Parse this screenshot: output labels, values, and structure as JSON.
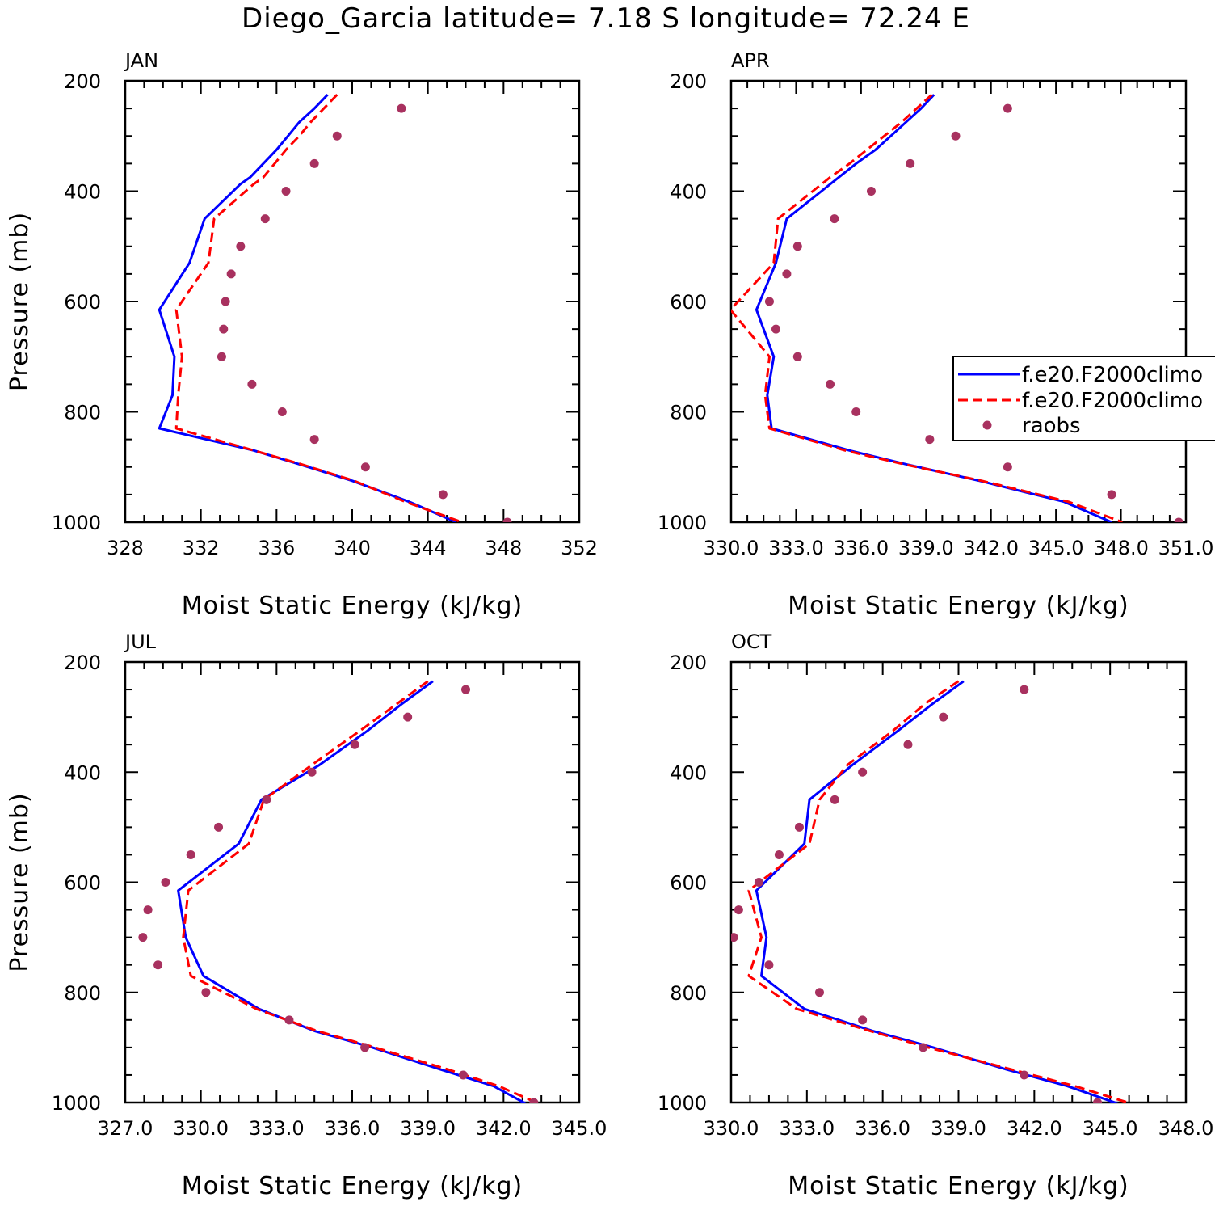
{
  "title": "Diego_Garcia  latitude= 7.18 S longitude= 72.24 E",
  "legend": [
    {
      "label": "f.e20.F2000climo",
      "color": "#0000ff",
      "style": "solid"
    },
    {
      "label": "f.e20.F2000climo",
      "color": "#ff0000",
      "style": "dashed"
    },
    {
      "label": "raobs",
      "color": "#a8315f",
      "style": "marker"
    }
  ],
  "chart_data": [
    {
      "type": "line",
      "panel": "JAN",
      "xlabel": "Moist Static Energy (kJ/kg)",
      "ylabel": "Pressure (mb)",
      "xlim": [
        328,
        352
      ],
      "ylim": [
        200,
        1000
      ],
      "xticks": [
        328,
        332,
        336,
        340,
        344,
        348,
        352
      ],
      "xtick_labels": [
        "328",
        "332",
        "336",
        "340",
        "344",
        "348",
        "352"
      ],
      "yticks": [
        200,
        400,
        600,
        800,
        1000
      ],
      "ytick_labels": [
        "200",
        "400",
        "600",
        "800",
        "1000"
      ],
      "series": [
        {
          "name": "f.e20.F2000climo",
          "style": "solid",
          "color": "#0000ff",
          "pressure": [
            225,
            250,
            275,
            300,
            325,
            350,
            375,
            387,
            450,
            530,
            615,
            700,
            770,
            830,
            870,
            895,
            925,
            963,
            1000
          ],
          "x": [
            338.7,
            338.0,
            337.2,
            336.6,
            336.0,
            335.3,
            334.6,
            334.1,
            332.2,
            331.4,
            329.8,
            330.6,
            330.5,
            329.8,
            334.8,
            337.2,
            340.0,
            343.0,
            345.5
          ]
        },
        {
          "name": "f.e20.F2000climo",
          "style": "dashed",
          "color": "#ff0000",
          "pressure": [
            225,
            250,
            275,
            300,
            325,
            350,
            375,
            387,
            450,
            530,
            615,
            700,
            770,
            830,
            870,
            895,
            925,
            963,
            1000
          ],
          "x": [
            339.2,
            338.5,
            337.8,
            337.2,
            336.5,
            335.9,
            335.3,
            334.8,
            332.7,
            332.4,
            330.7,
            331.0,
            330.8,
            330.7,
            334.8,
            337.3,
            340.1,
            342.8,
            345.8
          ]
        },
        {
          "name": "raobs",
          "style": "marker",
          "color": "#a8315f",
          "pressure": [
            250,
            300,
            350,
            400,
            450,
            500,
            550,
            600,
            650,
            700,
            750,
            800,
            850,
            900,
            950,
            1000
          ],
          "x": [
            342.6,
            339.2,
            338.0,
            336.5,
            335.4,
            334.1,
            333.6,
            333.3,
            333.2,
            333.1,
            334.7,
            336.3,
            338.0,
            340.7,
            344.8,
            348.2
          ]
        }
      ]
    },
    {
      "type": "line",
      "panel": "APR",
      "xlabel": "Moist Static Energy (kJ/kg)",
      "ylabel": "",
      "xlim": [
        330.03,
        351.03
      ],
      "ylim": [
        200,
        1000
      ],
      "xticks": [
        330.03,
        333.03,
        336.03,
        339.03,
        342.03,
        345.03,
        348.03,
        351.03
      ],
      "xtick_labels": [
        "330.0",
        "333.0",
        "336.0",
        "339.0",
        "342.0",
        "345.0",
        "348.0",
        "351.0"
      ],
      "yticks": [
        200,
        400,
        600,
        800,
        1000
      ],
      "ytick_labels": [
        "200",
        "400",
        "600",
        "800",
        "1000"
      ],
      "series": [
        {
          "name": "f.e20.F2000climo",
          "style": "solid",
          "color": "#0000ff",
          "pressure": [
            225,
            250,
            275,
            300,
            325,
            350,
            375,
            400,
            450,
            530,
            615,
            700,
            770,
            830,
            870,
            895,
            925,
            963,
            1000
          ],
          "x": [
            339.4,
            338.8,
            338.1,
            337.4,
            336.7,
            335.8,
            335.0,
            334.2,
            332.6,
            332.1,
            331.2,
            332.0,
            331.7,
            331.9,
            335.5,
            338.1,
            341.5,
            345.4,
            347.6
          ]
        },
        {
          "name": "f.e20.F2000climo",
          "style": "dashed",
          "color": "#ff0000",
          "pressure": [
            225,
            250,
            275,
            300,
            325,
            350,
            375,
            400,
            450,
            530,
            615,
            700,
            770,
            830,
            870,
            895,
            925,
            963,
            1000
          ],
          "x": [
            339.3,
            338.6,
            337.9,
            337.1,
            336.3,
            335.5,
            334.6,
            333.8,
            332.2,
            332.0,
            330.0,
            331.8,
            331.6,
            331.8,
            335.3,
            338.0,
            341.6,
            345.6,
            348.1
          ]
        },
        {
          "name": "raobs",
          "style": "marker",
          "color": "#a8315f",
          "pressure": [
            250,
            300,
            350,
            400,
            450,
            500,
            550,
            600,
            650,
            700,
            750,
            800,
            850,
            900,
            950,
            1000
          ],
          "x": [
            342.8,
            340.4,
            338.3,
            336.5,
            334.8,
            333.1,
            332.6,
            331.8,
            332.1,
            333.1,
            334.6,
            335.8,
            339.2,
            342.8,
            347.6,
            350.7
          ]
        }
      ]
    },
    {
      "type": "line",
      "panel": "JUL",
      "xlabel": "Moist Static Energy (kJ/kg)",
      "ylabel": "Pressure (mb)",
      "xlim": [
        327,
        345
      ],
      "ylim": [
        200,
        1000
      ],
      "xticks": [
        327,
        330,
        333,
        336,
        339,
        342,
        345
      ],
      "xtick_labels": [
        "327.0",
        "330.0",
        "333.0",
        "336.0",
        "339.0",
        "342.0",
        "345.0"
      ],
      "yticks": [
        200,
        400,
        600,
        800,
        1000
      ],
      "ytick_labels": [
        "200",
        "400",
        "600",
        "800",
        "1000"
      ],
      "series": [
        {
          "name": "f.e20.F2000climo",
          "style": "solid",
          "color": "#0000ff",
          "pressure": [
            235,
            275,
            325,
            387,
            450,
            530,
            615,
            700,
            770,
            830,
            870,
            900,
            940,
            970,
            1005
          ],
          "x": [
            339.2,
            338.0,
            336.6,
            334.7,
            332.4,
            331.5,
            329.1,
            329.4,
            330.1,
            332.3,
            334.5,
            336.8,
            339.5,
            341.6,
            343.0
          ]
        },
        {
          "name": "f.e20.F2000climo",
          "style": "dashed",
          "color": "#ff0000",
          "pressure": [
            235,
            275,
            325,
            387,
            450,
            530,
            615,
            700,
            770,
            830,
            870,
            900,
            940,
            970,
            1000
          ],
          "x": [
            339.0,
            337.8,
            336.3,
            334.4,
            332.5,
            331.9,
            329.5,
            329.3,
            329.6,
            332.2,
            334.6,
            336.9,
            339.8,
            341.8,
            343.3
          ]
        },
        {
          "name": "raobs",
          "style": "marker",
          "color": "#a8315f",
          "pressure": [
            250,
            300,
            350,
            400,
            450,
            500,
            550,
            600,
            650,
            700,
            750,
            800,
            850,
            900,
            950,
            1000
          ],
          "x": [
            340.5,
            338.2,
            336.1,
            334.4,
            332.6,
            330.7,
            329.6,
            328.6,
            327.9,
            327.7,
            328.3,
            330.2,
            333.5,
            336.5,
            340.4,
            343.2
          ]
        }
      ]
    },
    {
      "type": "line",
      "panel": "OCT",
      "xlabel": "Moist Static Energy (kJ/kg)",
      "ylabel": "",
      "xlim": [
        330,
        348
      ],
      "ylim": [
        200,
        1000
      ],
      "xticks": [
        330,
        333,
        336,
        339,
        342,
        345,
        348
      ],
      "xtick_labels": [
        "330.0",
        "333.0",
        "336.0",
        "339.0",
        "342.0",
        "345.0",
        "348.0"
      ],
      "yticks": [
        200,
        400,
        600,
        800,
        1000
      ],
      "ytick_labels": [
        "200",
        "400",
        "600",
        "800",
        "1000"
      ],
      "series": [
        {
          "name": "f.e20.F2000climo",
          "style": "solid",
          "color": "#0000ff",
          "pressure": [
            235,
            275,
            325,
            387,
            450,
            530,
            615,
            700,
            770,
            830,
            870,
            900,
            940,
            970,
            1005
          ],
          "x": [
            339.2,
            338.0,
            336.6,
            334.8,
            333.1,
            332.9,
            331.0,
            331.4,
            331.2,
            332.9,
            335.6,
            338.0,
            340.9,
            343.3,
            345.5
          ]
        },
        {
          "name": "f.e20.F2000climo",
          "style": "dashed",
          "color": "#ff0000",
          "pressure": [
            235,
            275,
            325,
            387,
            450,
            530,
            615,
            700,
            770,
            830,
            870,
            900,
            940,
            970,
            1000
          ],
          "x": [
            339.0,
            337.7,
            336.4,
            334.6,
            333.5,
            333.1,
            330.7,
            331.2,
            330.7,
            332.6,
            335.5,
            337.8,
            341.1,
            343.6,
            345.7
          ]
        },
        {
          "name": "raobs",
          "style": "marker",
          "color": "#a8315f",
          "pressure": [
            250,
            300,
            350,
            400,
            450,
            500,
            550,
            600,
            650,
            700,
            750,
            800,
            850,
            900,
            950,
            1000
          ],
          "x": [
            341.6,
            338.4,
            337.0,
            335.2,
            334.1,
            332.7,
            331.9,
            331.1,
            330.3,
            330.1,
            331.5,
            333.5,
            335.2,
            337.6,
            341.6,
            344.5
          ]
        }
      ]
    }
  ]
}
